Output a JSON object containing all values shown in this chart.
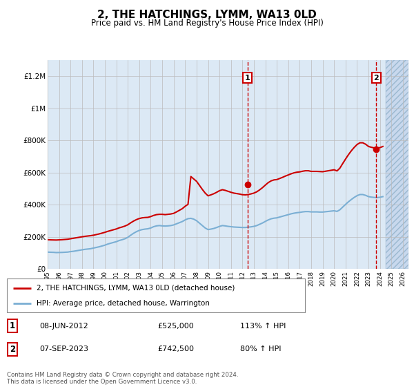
{
  "title": "2, THE HATCHINGS, LYMM, WA13 0LD",
  "subtitle": "Price paid vs. HM Land Registry's House Price Index (HPI)",
  "title_fontsize": 11,
  "subtitle_fontsize": 8.5,
  "ylabel_ticks": [
    "£0",
    "£200K",
    "£400K",
    "£600K",
    "£800K",
    "£1M",
    "£1.2M"
  ],
  "ytick_values": [
    0,
    200000,
    400000,
    600000,
    800000,
    1000000,
    1200000
  ],
  "ylim": [
    0,
    1300000
  ],
  "xlim_start": 1995.0,
  "xlim_end": 2026.5,
  "background_light_blue": "#dce9f5",
  "grid_color": "#bbbbbb",
  "hpi_line_color": "#7bafd4",
  "price_line_color": "#cc0000",
  "sale1_date_x": 2012.44,
  "sale1_price": 525000,
  "sale2_date_x": 2023.68,
  "sale2_price": 742500,
  "legend_label1": "2, THE HATCHINGS, LYMM, WA13 0LD (detached house)",
  "legend_label2": "HPI: Average price, detached house, Warrington",
  "table_row1": [
    "1",
    "08-JUN-2012",
    "£525,000",
    "113% ↑ HPI"
  ],
  "table_row2": [
    "2",
    "07-SEP-2023",
    "£742,500",
    "80% ↑ HPI"
  ],
  "footer": "Contains HM Land Registry data © Crown copyright and database right 2024.\nThis data is licensed under the Open Government Licence v3.0.",
  "hpi_data": [
    [
      1995.0,
      105000
    ],
    [
      1995.25,
      104000
    ],
    [
      1995.5,
      103500
    ],
    [
      1995.75,
      102000
    ],
    [
      1996.0,
      102500
    ],
    [
      1996.25,
      103000
    ],
    [
      1996.5,
      104000
    ],
    [
      1996.75,
      105000
    ],
    [
      1997.0,
      108000
    ],
    [
      1997.25,
      110000
    ],
    [
      1997.5,
      113000
    ],
    [
      1997.75,
      116000
    ],
    [
      1998.0,
      119000
    ],
    [
      1998.25,
      122000
    ],
    [
      1998.5,
      124000
    ],
    [
      1998.75,
      126000
    ],
    [
      1999.0,
      130000
    ],
    [
      1999.25,
      134000
    ],
    [
      1999.5,
      138000
    ],
    [
      1999.75,
      143000
    ],
    [
      2000.0,
      148000
    ],
    [
      2000.25,
      155000
    ],
    [
      2000.5,
      160000
    ],
    [
      2000.75,
      165000
    ],
    [
      2001.0,
      170000
    ],
    [
      2001.25,
      177000
    ],
    [
      2001.5,
      182000
    ],
    [
      2001.75,
      188000
    ],
    [
      2002.0,
      197000
    ],
    [
      2002.25,
      210000
    ],
    [
      2002.5,
      222000
    ],
    [
      2002.75,
      232000
    ],
    [
      2003.0,
      240000
    ],
    [
      2003.25,
      245000
    ],
    [
      2003.5,
      248000
    ],
    [
      2003.75,
      250000
    ],
    [
      2004.0,
      255000
    ],
    [
      2004.25,
      263000
    ],
    [
      2004.5,
      268000
    ],
    [
      2004.75,
      270000
    ],
    [
      2005.0,
      268000
    ],
    [
      2005.25,
      267000
    ],
    [
      2005.5,
      268000
    ],
    [
      2005.75,
      270000
    ],
    [
      2006.0,
      274000
    ],
    [
      2006.25,
      281000
    ],
    [
      2006.5,
      288000
    ],
    [
      2006.75,
      295000
    ],
    [
      2007.0,
      305000
    ],
    [
      2007.25,
      313000
    ],
    [
      2007.5,
      315000
    ],
    [
      2007.75,
      310000
    ],
    [
      2008.0,
      300000
    ],
    [
      2008.25,
      285000
    ],
    [
      2008.5,
      270000
    ],
    [
      2008.75,
      255000
    ],
    [
      2009.0,
      245000
    ],
    [
      2009.25,
      248000
    ],
    [
      2009.5,
      252000
    ],
    [
      2009.75,
      258000
    ],
    [
      2010.0,
      265000
    ],
    [
      2010.25,
      270000
    ],
    [
      2010.5,
      268000
    ],
    [
      2010.75,
      265000
    ],
    [
      2011.0,
      263000
    ],
    [
      2011.25,
      261000
    ],
    [
      2011.5,
      260000
    ],
    [
      2011.75,
      259000
    ],
    [
      2012.0,
      258000
    ],
    [
      2012.25,
      258000
    ],
    [
      2012.5,
      260000
    ],
    [
      2012.75,
      262000
    ],
    [
      2013.0,
      265000
    ],
    [
      2013.25,
      270000
    ],
    [
      2013.5,
      278000
    ],
    [
      2013.75,
      286000
    ],
    [
      2014.0,
      296000
    ],
    [
      2014.25,
      305000
    ],
    [
      2014.5,
      312000
    ],
    [
      2014.75,
      316000
    ],
    [
      2015.0,
      318000
    ],
    [
      2015.25,
      323000
    ],
    [
      2015.5,
      328000
    ],
    [
      2015.75,
      333000
    ],
    [
      2016.0,
      338000
    ],
    [
      2016.25,
      343000
    ],
    [
      2016.5,
      347000
    ],
    [
      2016.75,
      350000
    ],
    [
      2017.0,
      352000
    ],
    [
      2017.25,
      355000
    ],
    [
      2017.5,
      357000
    ],
    [
      2017.75,
      357000
    ],
    [
      2018.0,
      355000
    ],
    [
      2018.25,
      355000
    ],
    [
      2018.5,
      355000
    ],
    [
      2018.75,
      354000
    ],
    [
      2019.0,
      354000
    ],
    [
      2019.25,
      356000
    ],
    [
      2019.5,
      358000
    ],
    [
      2019.75,
      360000
    ],
    [
      2020.0,
      362000
    ],
    [
      2020.25,
      358000
    ],
    [
      2020.5,
      368000
    ],
    [
      2020.75,
      385000
    ],
    [
      2021.0,
      402000
    ],
    [
      2021.25,
      418000
    ],
    [
      2021.5,
      432000
    ],
    [
      2021.75,
      445000
    ],
    [
      2022.0,
      456000
    ],
    [
      2022.25,
      463000
    ],
    [
      2022.5,
      463000
    ],
    [
      2022.75,
      458000
    ],
    [
      2023.0,
      450000
    ],
    [
      2023.25,
      447000
    ],
    [
      2023.5,
      445000
    ],
    [
      2023.75,
      444000
    ],
    [
      2024.0,
      446000
    ],
    [
      2024.25,
      450000
    ]
  ],
  "price_data": [
    [
      1995.0,
      182000
    ],
    [
      1995.25,
      181000
    ],
    [
      1995.5,
      180500
    ],
    [
      1995.75,
      180000
    ],
    [
      1996.0,
      181000
    ],
    [
      1996.25,
      182000
    ],
    [
      1996.5,
      183500
    ],
    [
      1996.75,
      185000
    ],
    [
      1997.0,
      188000
    ],
    [
      1997.25,
      191000
    ],
    [
      1997.5,
      194000
    ],
    [
      1997.75,
      197000
    ],
    [
      1998.0,
      200000
    ],
    [
      1998.25,
      203000
    ],
    [
      1998.5,
      205000
    ],
    [
      1998.75,
      207000
    ],
    [
      1999.0,
      210000
    ],
    [
      1999.25,
      214000
    ],
    [
      1999.5,
      218000
    ],
    [
      1999.75,
      223000
    ],
    [
      2000.0,
      228000
    ],
    [
      2000.25,
      234000
    ],
    [
      2000.5,
      239000
    ],
    [
      2000.75,
      244000
    ],
    [
      2001.0,
      249000
    ],
    [
      2001.25,
      256000
    ],
    [
      2001.5,
      261000
    ],
    [
      2001.75,
      267000
    ],
    [
      2002.0,
      275000
    ],
    [
      2002.25,
      287000
    ],
    [
      2002.5,
      298000
    ],
    [
      2002.75,
      307000
    ],
    [
      2003.0,
      314000
    ],
    [
      2003.25,
      318000
    ],
    [
      2003.5,
      320000
    ],
    [
      2003.75,
      321000
    ],
    [
      2004.0,
      326000
    ],
    [
      2004.25,
      333000
    ],
    [
      2004.5,
      338000
    ],
    [
      2004.75,
      340000
    ],
    [
      2005.0,
      340000
    ],
    [
      2005.25,
      338000
    ],
    [
      2005.5,
      340000
    ],
    [
      2005.75,
      342000
    ],
    [
      2006.0,
      346000
    ],
    [
      2006.25,
      355000
    ],
    [
      2006.5,
      365000
    ],
    [
      2006.75,
      375000
    ],
    [
      2007.0,
      390000
    ],
    [
      2007.25,
      402000
    ],
    [
      2007.5,
      575000
    ],
    [
      2007.75,
      560000
    ],
    [
      2008.0,
      545000
    ],
    [
      2008.25,
      520000
    ],
    [
      2008.5,
      495000
    ],
    [
      2008.75,
      472000
    ],
    [
      2009.0,
      455000
    ],
    [
      2009.25,
      461000
    ],
    [
      2009.5,
      468000
    ],
    [
      2009.75,
      477000
    ],
    [
      2010.0,
      487000
    ],
    [
      2010.25,
      493000
    ],
    [
      2010.5,
      489000
    ],
    [
      2010.75,
      483000
    ],
    [
      2011.0,
      477000
    ],
    [
      2011.25,
      472000
    ],
    [
      2011.5,
      469000
    ],
    [
      2011.75,
      466000
    ],
    [
      2012.0,
      462000
    ],
    [
      2012.25,
      461000
    ],
    [
      2012.5,
      463000
    ],
    [
      2012.75,
      467000
    ],
    [
      2013.0,
      472000
    ],
    [
      2013.25,
      480000
    ],
    [
      2013.5,
      492000
    ],
    [
      2013.75,
      506000
    ],
    [
      2014.0,
      522000
    ],
    [
      2014.25,
      537000
    ],
    [
      2014.5,
      548000
    ],
    [
      2014.75,
      554000
    ],
    [
      2015.0,
      556000
    ],
    [
      2015.25,
      563000
    ],
    [
      2015.5,
      570000
    ],
    [
      2015.75,
      578000
    ],
    [
      2016.0,
      585000
    ],
    [
      2016.25,
      592000
    ],
    [
      2016.5,
      598000
    ],
    [
      2016.75,
      602000
    ],
    [
      2017.0,
      604000
    ],
    [
      2017.25,
      608000
    ],
    [
      2017.5,
      611000
    ],
    [
      2017.75,
      611000
    ],
    [
      2018.0,
      607000
    ],
    [
      2018.25,
      607000
    ],
    [
      2018.5,
      607000
    ],
    [
      2018.75,
      606000
    ],
    [
      2019.0,
      605000
    ],
    [
      2019.25,
      608000
    ],
    [
      2019.5,
      611000
    ],
    [
      2019.75,
      614000
    ],
    [
      2020.0,
      617000
    ],
    [
      2020.25,
      610000
    ],
    [
      2020.5,
      627000
    ],
    [
      2020.75,
      656000
    ],
    [
      2021.0,
      684000
    ],
    [
      2021.25,
      711000
    ],
    [
      2021.5,
      735000
    ],
    [
      2021.75,
      756000
    ],
    [
      2022.0,
      774000
    ],
    [
      2022.25,
      785000
    ],
    [
      2022.5,
      785000
    ],
    [
      2022.75,
      776000
    ],
    [
      2023.0,
      762000
    ],
    [
      2023.25,
      757000
    ],
    [
      2023.5,
      753000
    ],
    [
      2023.75,
      752000
    ],
    [
      2024.0,
      755000
    ],
    [
      2024.25,
      762000
    ]
  ]
}
